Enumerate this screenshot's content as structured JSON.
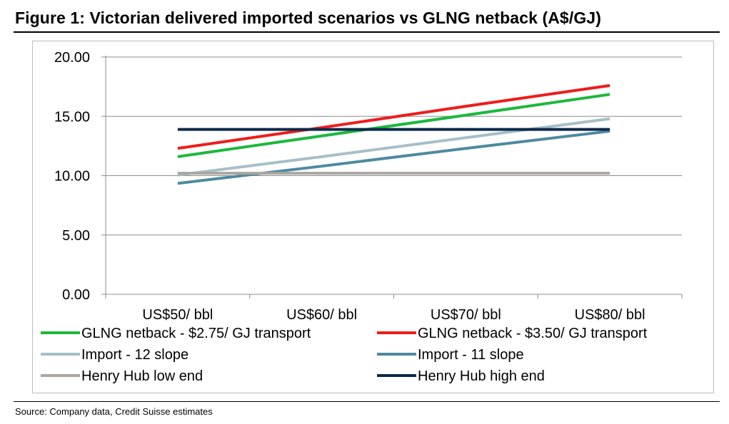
{
  "title": "Figure 1: Victorian delivered imported scenarios vs GLNG netback (A$/GJ)",
  "source": "Source: Company data, Credit Suisse estimates",
  "chart_data": {
    "type": "line",
    "title": "Figure 1: Victorian delivered imported scenarios vs GLNG netback (A$/GJ)",
    "xlabel": "",
    "ylabel": "",
    "ylim": [
      0,
      20
    ],
    "yticks": [
      "0.00",
      "5.00",
      "10.00",
      "15.00",
      "20.00"
    ],
    "grid": true,
    "legend_position": "bottom",
    "categories": [
      "US$50/ bbl",
      "US$60/ bbl",
      "US$70/ bbl",
      "US$80/ bbl"
    ],
    "series": [
      {
        "name": "GLNG netback - $2.75/ GJ transport",
        "color": "#1cb83c",
        "values": [
          11.6,
          13.35,
          15.1,
          16.85
        ]
      },
      {
        "name": "GLNG netback - $3.50/ GJ transport",
        "color": "#ef1c1c",
        "values": [
          12.3,
          14.05,
          15.85,
          17.6
        ]
      },
      {
        "name": "Import - 12 slope",
        "color": "#a6bfc9",
        "values": [
          10.05,
          11.6,
          13.2,
          14.8
        ]
      },
      {
        "name": "Import - 11 slope",
        "color": "#4e8aa1",
        "values": [
          9.35,
          10.8,
          12.3,
          13.75
        ]
      },
      {
        "name": "Henry Hub low end",
        "color": "#aaa6a2",
        "values": [
          10.2,
          10.2,
          10.2,
          10.2
        ]
      },
      {
        "name": "Henry Hub high end",
        "color": "#0c2a4a",
        "values": [
          13.9,
          13.9,
          13.9,
          13.9
        ]
      }
    ]
  }
}
